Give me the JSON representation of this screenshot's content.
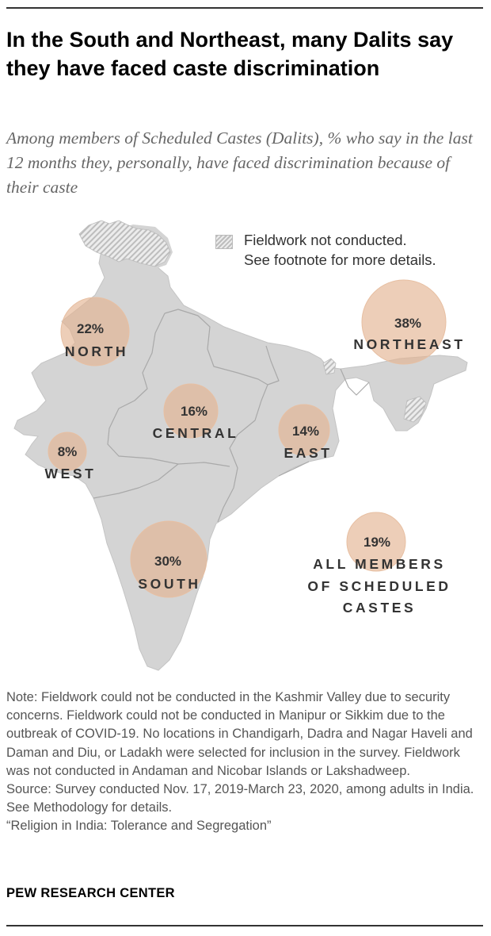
{
  "title": "In the South and Northeast, many Dalits say they have faced caste discrimination",
  "subtitle": "Among members of Scheduled Castes (Dalits), % who say in the last 12 months they, personally, have faced discrimination because of their caste",
  "legend": {
    "hatched_label_line1": "Fieldwork not conducted.",
    "hatched_label_line2": "See footnote for more details."
  },
  "colors": {
    "land": "#d4d4d4",
    "borders": "#a9a9a9",
    "bubble": "#e4b392",
    "text": "#333333",
    "hatch": "#bdbdbd"
  },
  "chart_data": {
    "type": "bubble-map",
    "unit": "%",
    "regions": [
      {
        "region": "NORTH",
        "value": 22,
        "label": "22%"
      },
      {
        "region": "NORTHEAST",
        "value": 38,
        "label": "38%"
      },
      {
        "region": "CENTRAL",
        "value": 16,
        "label": "16%"
      },
      {
        "region": "EAST",
        "value": 14,
        "label": "14%"
      },
      {
        "region": "WEST",
        "value": 8,
        "label": "8%"
      },
      {
        "region": "SOUTH",
        "value": 30,
        "label": "30%"
      }
    ],
    "overall": {
      "value": 19,
      "label": "19%",
      "name_lines": [
        "ALL MEMBERS",
        "OF SCHEDULED",
        "CASTES"
      ]
    }
  },
  "notes": {
    "note": "Note: Fieldwork could not be conducted in the Kashmir Valley due to security concerns. Fieldwork could not be conducted in Manipur or Sikkim due to the outbreak of COVID-19. No locations in Chandigarh, Dadra and Nagar Haveli and Daman and Diu, or Ladakh were selected for inclusion in the survey. Fieldwork was not conducted in Andaman and Nicobar Islands or Lakshadweep.",
    "source": "Source: Survey conducted Nov. 17, 2019-March 23, 2020, among adults in India. See Methodology for details.",
    "report": "“Religion in India: Tolerance and Segregation”"
  },
  "brand": "PEW RESEARCH CENTER"
}
